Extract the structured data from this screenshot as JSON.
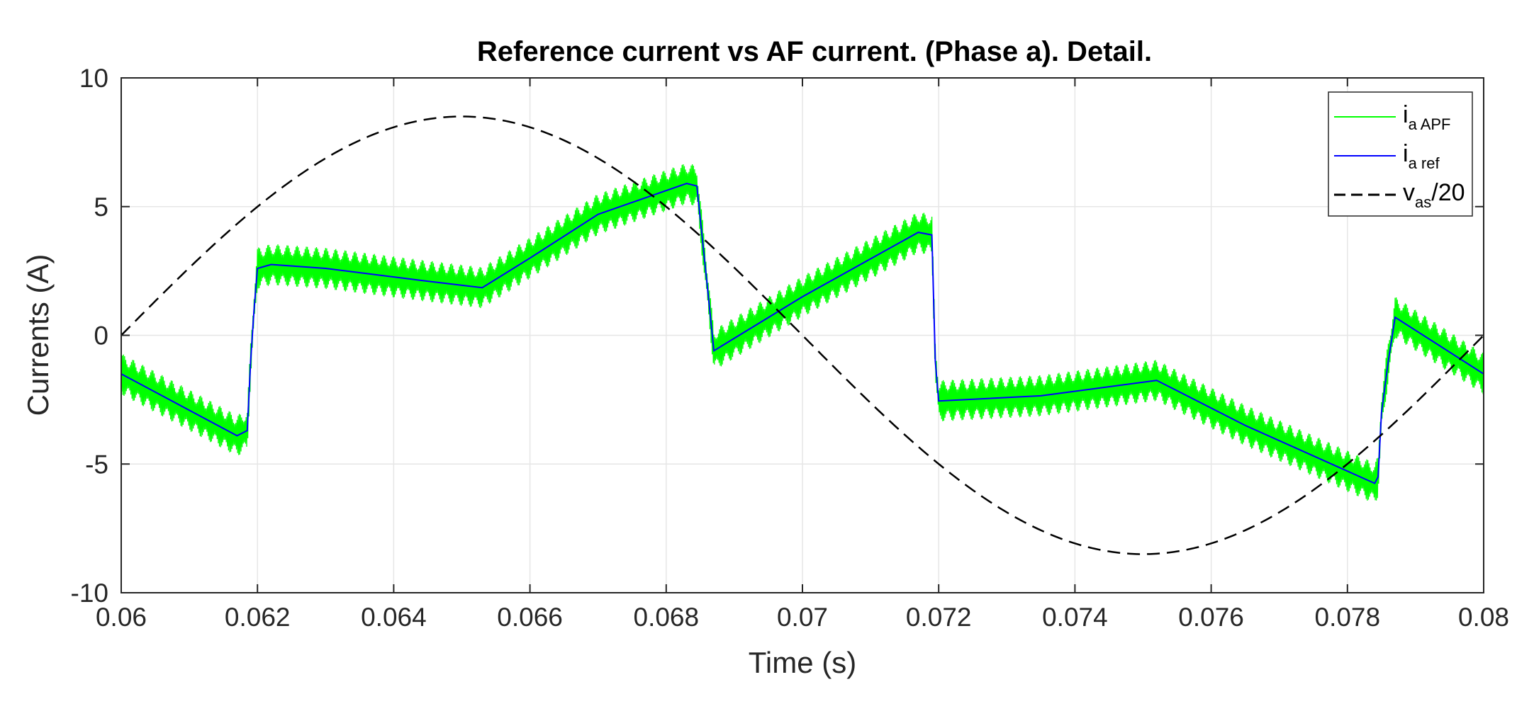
{
  "chart_data": {
    "type": "line",
    "title": "Reference current vs AF current. (Phase a). Detail.",
    "xlabel": "Time (s)",
    "ylabel": "Currents (A)",
    "xlim": [
      0.06,
      0.08
    ],
    "ylim": [
      -10,
      10
    ],
    "grid": true,
    "legend_location": "top-right",
    "x_ticks": [
      0.06,
      0.062,
      0.064,
      0.066,
      0.068,
      0.07,
      0.072,
      0.074,
      0.076,
      0.078,
      0.08
    ],
    "x_tick_labels": [
      "0.06",
      "0.062",
      "0.064",
      "0.066",
      "0.068",
      "0.07",
      "0.072",
      "0.074",
      "0.076",
      "0.078",
      "0.08"
    ],
    "y_ticks": [
      -10,
      -5,
      0,
      5,
      10
    ],
    "y_tick_labels": [
      "-10",
      "-5",
      "0",
      "5",
      "10"
    ],
    "series": [
      {
        "name": "i_a APF",
        "legend_main": "i",
        "legend_sub": "a APF",
        "color": "#00ff00",
        "style": "solid",
        "ripple_amplitude": 0.8,
        "points": [
          [
            0.06,
            -1.5
          ],
          [
            0.0617,
            -3.9
          ],
          [
            0.06185,
            -3.7
          ],
          [
            0.0619,
            -1.0
          ],
          [
            0.06195,
            1.0
          ],
          [
            0.062,
            2.6
          ],
          [
            0.0622,
            2.75
          ],
          [
            0.063,
            2.6
          ],
          [
            0.0645,
            2.1
          ],
          [
            0.0653,
            1.85
          ],
          [
            0.066,
            3.0
          ],
          [
            0.067,
            4.7
          ],
          [
            0.0683,
            5.9
          ],
          [
            0.06845,
            5.8
          ],
          [
            0.0686,
            2.0
          ],
          [
            0.0687,
            -0.6
          ],
          [
            0.07,
            1.5
          ],
          [
            0.0717,
            4.0
          ],
          [
            0.06872,
            -0.55
          ],
          [
            0.0719,
            3.9
          ],
          [
            0.07195,
            -1.0
          ],
          [
            0.072,
            -2.55
          ],
          [
            0.0735,
            -2.35
          ],
          [
            0.0752,
            -1.75
          ],
          [
            0.0765,
            -3.5
          ],
          [
            0.0784,
            -5.75
          ],
          [
            0.07845,
            -5.5
          ],
          [
            0.0785,
            -3.0
          ],
          [
            0.0786,
            -1.0
          ],
          [
            0.0787,
            0.7
          ],
          [
            0.08,
            -1.5
          ]
        ]
      },
      {
        "name": "i_a ref",
        "legend_main": "i",
        "legend_sub": "a ref",
        "color": "#0000ff",
        "style": "solid",
        "points": [
          [
            0.06,
            -1.5
          ],
          [
            0.0617,
            -3.9
          ],
          [
            0.06185,
            -3.7
          ],
          [
            0.0619,
            -1.0
          ],
          [
            0.06195,
            1.0
          ],
          [
            0.062,
            2.6
          ],
          [
            0.0622,
            2.75
          ],
          [
            0.063,
            2.6
          ],
          [
            0.0645,
            2.1
          ],
          [
            0.0653,
            1.85
          ],
          [
            0.066,
            3.0
          ],
          [
            0.067,
            4.7
          ],
          [
            0.0683,
            5.9
          ],
          [
            0.06845,
            5.8
          ],
          [
            0.0686,
            2.0
          ],
          [
            0.0687,
            -0.6
          ],
          [
            0.07,
            1.5
          ],
          [
            0.0717,
            4.0
          ],
          [
            0.0719,
            3.9
          ],
          [
            0.07195,
            -1.0
          ],
          [
            0.072,
            -2.55
          ],
          [
            0.0735,
            -2.35
          ],
          [
            0.0752,
            -1.75
          ],
          [
            0.0765,
            -3.5
          ],
          [
            0.0784,
            -5.75
          ],
          [
            0.07845,
            -5.5
          ],
          [
            0.0785,
            -3.0
          ],
          [
            0.0786,
            -1.0
          ],
          [
            0.0787,
            0.7
          ],
          [
            0.08,
            -1.5
          ]
        ]
      },
      {
        "name": "v_as/20",
        "legend_main": "v",
        "legend_sub": "as",
        "legend_suffix": "/20",
        "color": "#000000",
        "style": "dashed",
        "amplitude": 8.5,
        "frequency_hz": 50,
        "phase_start_s": 0.06
      }
    ]
  }
}
